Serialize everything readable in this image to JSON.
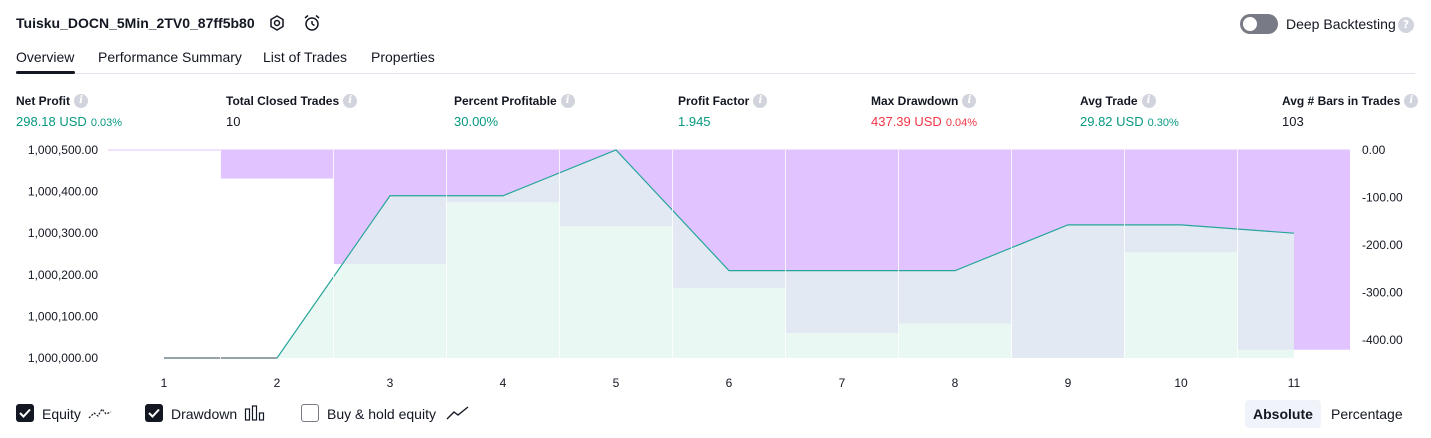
{
  "header": {
    "strategy_name": "Tuisku_DOCN_5Min_2TV0_87ff5b80",
    "deep_backtesting_label": "Deep Backtesting",
    "deep_backtesting_enabled": false,
    "icons": [
      "settings-icon",
      "alarm-add-icon",
      "help-icon"
    ]
  },
  "tabs": [
    {
      "label": "Overview",
      "active": true
    },
    {
      "label": "Performance Summary",
      "active": false
    },
    {
      "label": "List of Trades",
      "active": false
    },
    {
      "label": "Properties",
      "active": false
    }
  ],
  "metrics": [
    {
      "label": "Net Profit",
      "value": "298.18 USD",
      "pct": "0.03%",
      "tone": "pos"
    },
    {
      "label": "Total Closed Trades",
      "value": "10",
      "pct": "",
      "tone": "neutral"
    },
    {
      "label": "Percent Profitable",
      "value": "30.00%",
      "pct": "",
      "tone": "pos"
    },
    {
      "label": "Profit Factor",
      "value": "1.945",
      "pct": "",
      "tone": "pos"
    },
    {
      "label": "Max Drawdown",
      "value": "437.39 USD",
      "pct": "0.04%",
      "tone": "neg"
    },
    {
      "label": "Avg Trade",
      "value": "29.82 USD",
      "pct": "0.30%",
      "tone": "pos"
    },
    {
      "label": "Avg # Bars in Trades",
      "value": "103",
      "pct": "",
      "tone": "neutral"
    }
  ],
  "colors": {
    "positive": "#089981",
    "negative": "#f23645",
    "drawdown_fill": "#e1c4ff",
    "equity_line": "#26a69a",
    "equity_fill": "#e3f5ef"
  },
  "chart_data": {
    "type": "line",
    "x": [
      1,
      2,
      3,
      4,
      5,
      6,
      7,
      8,
      9,
      10,
      11
    ],
    "series": [
      {
        "name": "Equity",
        "axis": "left",
        "values": [
          1000000,
          1000000,
          1000390,
          1000390,
          1000500,
          1000210,
          1000210,
          1000210,
          1000320,
          1000320,
          1000300
        ]
      },
      {
        "name": "Drawdown",
        "axis": "right",
        "type": "bar",
        "values": [
          0,
          -60,
          -240,
          -110,
          -160,
          -290,
          -385,
          -365,
          -437.39,
          -215,
          -420
        ]
      }
    ],
    "left_axis": {
      "ticks": [
        "1,000,000.00",
        "1,000,100.00",
        "1,000,200.00",
        "1,000,300.00",
        "1,000,400.00",
        "1,000,500.00"
      ],
      "range": [
        1000000,
        1000500
      ]
    },
    "right_axis": {
      "ticks": [
        "0.00",
        "-100.00",
        "-200.00",
        "-300.00",
        "-400.00"
      ],
      "range": [
        -437.39,
        0
      ]
    },
    "x_ticks": [
      "1",
      "2",
      "3",
      "4",
      "5",
      "6",
      "7",
      "8",
      "9",
      "10",
      "11"
    ],
    "grid": "vertical"
  },
  "legend": {
    "items": [
      {
        "label": "Equity",
        "checked": true
      },
      {
        "label": "Drawdown",
        "checked": true
      },
      {
        "label": "Buy & hold equity",
        "checked": false
      }
    ],
    "modes": [
      {
        "label": "Absolute",
        "active": true
      },
      {
        "label": "Percentage",
        "active": false
      }
    ]
  }
}
